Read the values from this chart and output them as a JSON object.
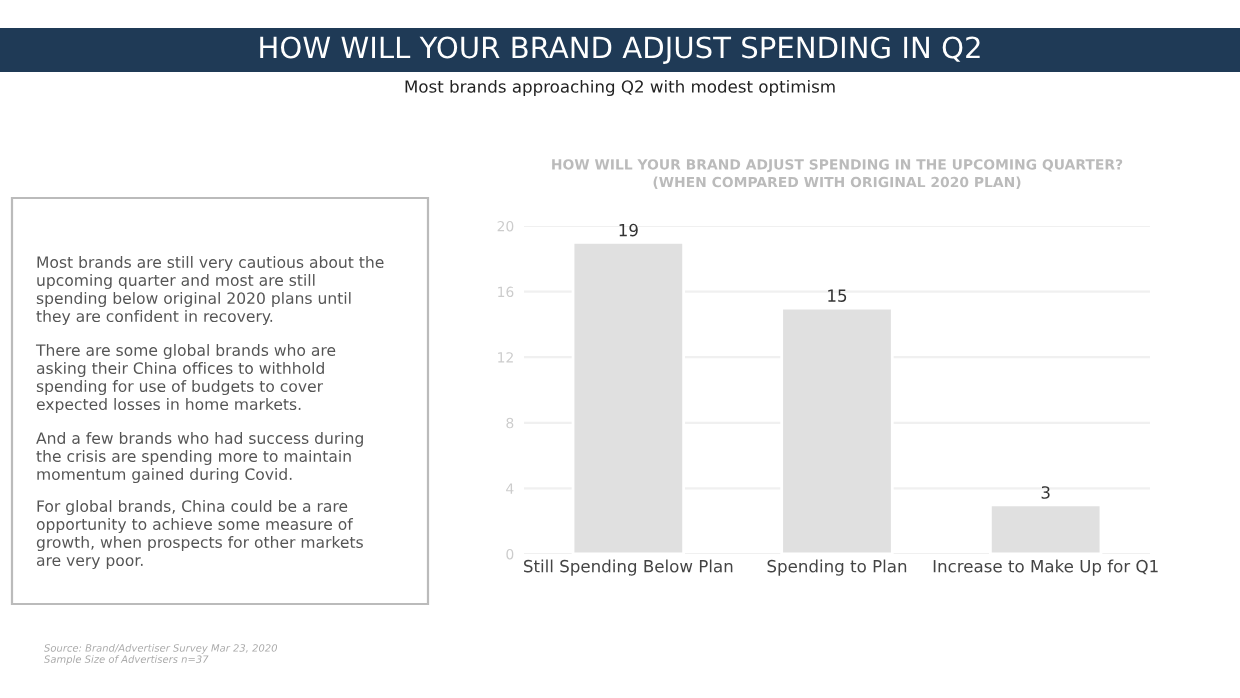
{
  "chart_data": [
    {
      "type": "other",
      "title": "HOW WILL YOUR BRAND ADJUST SPENDING IN Q2",
      "subtitle": "Most brands approaching Q2 with modest optimism",
      "annotations": [
        "Most brands are still very cautious about the\nupcoming quarter and most are still\nspending below original 2020 plans until\nthey are confident in recovery.",
        "There are some global brands who are\nasking their China offices to withhold\nspending for use of budgets to cover\nexpected losses in home markets.",
        "And a few brands who had success during\nthe crisis are spending more to maintain\nmomentum gained during Covid.",
        "For global brands, China could be a rare\nopportunity to achieve some measure of\ngrowth, when prospects for other markets\nare very poor.",
        "Source: Brand/Advertiser Survey Mar 23, 2020\nSample Size of Advertisers n=37"
      ]
    },
    {
      "type": "bar",
      "title": "HOW WILL YOUR BRAND ADJUST SPENDING IN THE UPCOMING QUARTER?\n(WHEN COMPARED WITH ORIGINAL 2020 PLAN)",
      "categories": [
        "Still Spending Below Plan",
        "Spending to Plan",
        "Increase to Make Up for Q1"
      ],
      "values": [
        19,
        15,
        3
      ],
      "color": "#e0e0e0",
      "ylim": [
        0,
        20
      ],
      "yticks": [
        0,
        4,
        8,
        12,
        16,
        20
      ],
      "grid": "y",
      "data_labels": true
    }
  ]
}
